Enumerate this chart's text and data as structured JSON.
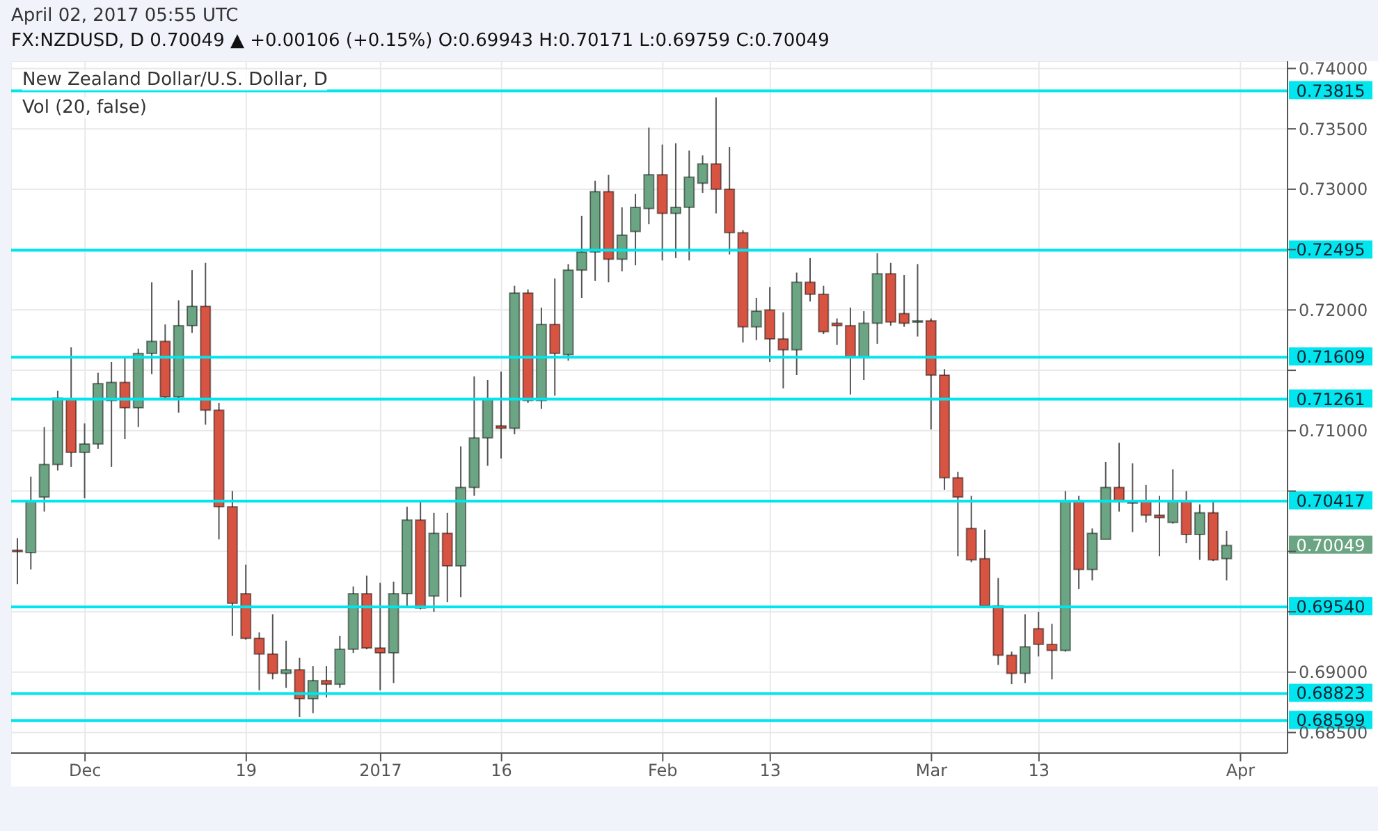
{
  "chart_data": {
    "type": "candlestick",
    "title": "New Zealand Dollar/U.S. Dollar, D",
    "subtitle": "April 02, 2017 05:55 UTC",
    "annotations": [
      "FX:NZDUSD, D 0.70049 ▲ +0.00106 (+0.15%) O:0.69943 H:0.70171 L:0.69759 C:0.70049",
      "Vol (20, false)",
      "0.70049"
    ],
    "categories": [
      null,
      null,
      null,
      null,
      null,
      "Dec",
      null,
      null,
      null,
      null,
      null,
      null,
      null,
      null,
      null,
      null,
      null,
      "19",
      null,
      null,
      null,
      null,
      null,
      null,
      null,
      null,
      null,
      "2017",
      null,
      null,
      null,
      null,
      null,
      null,
      null,
      null,
      "16",
      null,
      null,
      null,
      null,
      null,
      null,
      null,
      null,
      null,
      null,
      null,
      "Feb",
      null,
      null,
      null,
      null,
      null,
      null,
      null,
      "13",
      null,
      null,
      null,
      null,
      null,
      null,
      null,
      null,
      null,
      null,
      null,
      "Mar",
      null,
      null,
      null,
      null,
      null,
      null,
      null,
      "13",
      null,
      null,
      null,
      null,
      null,
      null,
      null,
      null,
      null,
      null,
      null,
      null,
      null,
      null,
      "Apr"
    ],
    "ohlc": [
      [
        0.7001,
        0.7011,
        0.6973,
        0.7
      ],
      [
        0.6999,
        0.7062,
        0.6985,
        0.7042
      ],
      [
        0.7045,
        0.7103,
        0.7033,
        0.7072
      ],
      [
        0.7072,
        0.7133,
        0.7067,
        0.7127
      ],
      [
        0.7126,
        0.7169,
        0.707,
        0.7082
      ],
      [
        0.7082,
        0.7106,
        0.7044,
        0.7089
      ],
      [
        0.7089,
        0.7148,
        0.7085,
        0.7139
      ],
      [
        0.7125,
        0.7157,
        0.707,
        0.714
      ],
      [
        0.714,
        0.716,
        0.7093,
        0.7119
      ],
      [
        0.7119,
        0.7168,
        0.7103,
        0.7164
      ],
      [
        0.7164,
        0.7223,
        0.7147,
        0.7174
      ],
      [
        0.7174,
        0.7188,
        0.7126,
        0.7128
      ],
      [
        0.7128,
        0.7208,
        0.7115,
        0.7187
      ],
      [
        0.7187,
        0.7233,
        0.7181,
        0.7203
      ],
      [
        0.7203,
        0.7239,
        0.7105,
        0.7117
      ],
      [
        0.7117,
        0.7123,
        0.701,
        0.7037
      ],
      [
        0.7037,
        0.705,
        0.693,
        0.6957
      ],
      [
        0.6965,
        0.6989,
        0.6927,
        0.6928
      ],
      [
        0.6928,
        0.6933,
        0.6885,
        0.6915
      ],
      [
        0.6915,
        0.6948,
        0.6894,
        0.6899
      ],
      [
        0.6899,
        0.6926,
        0.6887,
        0.6902
      ],
      [
        0.6902,
        0.6912,
        0.6863,
        0.6878
      ],
      [
        0.6878,
        0.6905,
        0.6866,
        0.6893
      ],
      [
        0.6893,
        0.6905,
        0.6879,
        0.689
      ],
      [
        0.689,
        0.693,
        0.6887,
        0.6919
      ],
      [
        0.6919,
        0.6971,
        0.6916,
        0.6965
      ],
      [
        0.6965,
        0.698,
        0.6919,
        0.692
      ],
      [
        0.692,
        0.6974,
        0.6885,
        0.6916
      ],
      [
        0.6916,
        0.6975,
        0.6891,
        0.6965
      ],
      [
        0.6965,
        0.7037,
        0.6955,
        0.7026
      ],
      [
        0.7026,
        0.7042,
        0.6952,
        0.6953
      ],
      [
        0.6963,
        0.7032,
        0.695,
        0.7015
      ],
      [
        0.7015,
        0.7032,
        0.6958,
        0.6988
      ],
      [
        0.6988,
        0.7087,
        0.6962,
        0.7053
      ],
      [
        0.7053,
        0.7145,
        0.7046,
        0.7094
      ],
      [
        0.7094,
        0.7142,
        0.7071,
        0.7126
      ],
      [
        0.7104,
        0.7149,
        0.7077,
        0.7102
      ],
      [
        0.7102,
        0.722,
        0.7097,
        0.7214
      ],
      [
        0.7214,
        0.7217,
        0.7123,
        0.7125
      ],
      [
        0.7125,
        0.7202,
        0.7118,
        0.7188
      ],
      [
        0.7188,
        0.7226,
        0.7129,
        0.7164
      ],
      [
        0.7163,
        0.7238,
        0.7158,
        0.7233
      ],
      [
        0.7233,
        0.7278,
        0.721,
        0.7248
      ],
      [
        0.7248,
        0.7307,
        0.7224,
        0.7298
      ],
      [
        0.7298,
        0.7312,
        0.7223,
        0.7242
      ],
      [
        0.7242,
        0.7285,
        0.7232,
        0.7262
      ],
      [
        0.7265,
        0.7296,
        0.7237,
        0.7285
      ],
      [
        0.7284,
        0.7351,
        0.7271,
        0.7312
      ],
      [
        0.7312,
        0.7337,
        0.7241,
        0.728
      ],
      [
        0.728,
        0.7338,
        0.7243,
        0.7285
      ],
      [
        0.7285,
        0.7332,
        0.7241,
        0.731
      ],
      [
        0.7305,
        0.7328,
        0.7297,
        0.7321
      ],
      [
        0.7321,
        0.7376,
        0.728,
        0.73
      ],
      [
        0.73,
        0.7335,
        0.7246,
        0.7264
      ],
      [
        0.7264,
        0.7266,
        0.7173,
        0.7186
      ],
      [
        0.7186,
        0.721,
        0.7175,
        0.7199
      ],
      [
        0.72,
        0.7219,
        0.7157,
        0.7176
      ],
      [
        0.7176,
        0.7198,
        0.7135,
        0.7167
      ],
      [
        0.7167,
        0.7231,
        0.7146,
        0.7223
      ],
      [
        0.7223,
        0.7243,
        0.7207,
        0.7213
      ],
      [
        0.7213,
        0.722,
        0.718,
        0.7182
      ],
      [
        0.7189,
        0.7193,
        0.7171,
        0.7187
      ],
      [
        0.7187,
        0.7202,
        0.713,
        0.7161
      ],
      [
        0.7161,
        0.7199,
        0.7142,
        0.7189
      ],
      [
        0.7189,
        0.7247,
        0.7172,
        0.723
      ],
      [
        0.723,
        0.7239,
        0.7187,
        0.719
      ],
      [
        0.7197,
        0.7229,
        0.7186,
        0.7189
      ],
      [
        0.719,
        0.7238,
        0.7178,
        0.7191
      ],
      [
        0.7191,
        0.7193,
        0.7101,
        0.7146
      ],
      [
        0.7146,
        0.7151,
        0.7051,
        0.7061
      ],
      [
        0.7061,
        0.7066,
        0.6996,
        0.7045
      ],
      [
        0.7019,
        0.7046,
        0.6991,
        0.6993
      ],
      [
        0.6994,
        0.7018,
        0.6953,
        0.6955
      ],
      [
        0.6955,
        0.6978,
        0.6906,
        0.6914
      ],
      [
        0.6914,
        0.6917,
        0.689,
        0.6899
      ],
      [
        0.6899,
        0.6948,
        0.6891,
        0.6921
      ],
      [
        0.6936,
        0.695,
        0.6913,
        0.6923
      ],
      [
        0.6923,
        0.694,
        0.6894,
        0.6918
      ],
      [
        0.6918,
        0.705,
        0.6917,
        0.7042
      ],
      [
        0.7042,
        0.7046,
        0.6969,
        0.6985
      ],
      [
        0.6985,
        0.7019,
        0.6976,
        0.7015
      ],
      [
        0.701,
        0.7074,
        0.701,
        0.7053
      ],
      [
        0.7053,
        0.709,
        0.7033,
        0.7041
      ],
      [
        0.7042,
        0.7073,
        0.7016,
        0.704
      ],
      [
        0.7042,
        0.7055,
        0.7024,
        0.703
      ],
      [
        0.703,
        0.7046,
        0.6996,
        0.7028
      ],
      [
        0.7024,
        0.7068,
        0.7023,
        0.7042
      ],
      [
        0.7042,
        0.705,
        0.7007,
        0.7014
      ],
      [
        0.7014,
        0.7039,
        0.6993,
        0.7032
      ],
      [
        0.7032,
        0.7042,
        0.6992,
        0.6993
      ],
      [
        0.6994,
        0.7017,
        0.6976,
        0.7005
      ],
      null
    ],
    "colors": [
      "#d75442",
      "#6ba583",
      "#6ba583",
      "#6ba583",
      "#d75442",
      "#6ba583",
      "#6ba583",
      "#6ba583",
      "#d75442",
      "#6ba583",
      "#6ba583",
      "#d75442",
      "#6ba583",
      "#6ba583",
      "#d75442",
      "#d75442",
      "#d75442",
      "#d75442",
      "#d75442",
      "#d75442",
      "#6ba583",
      "#d75442",
      "#6ba583",
      "#d75442",
      "#6ba583",
      "#6ba583",
      "#d75442",
      "#d75442",
      "#6ba583",
      "#6ba583",
      "#d75442",
      "#6ba583",
      "#d75442",
      "#6ba583",
      "#6ba583",
      "#6ba583",
      "#d75442",
      "#6ba583",
      "#d75442",
      "#6ba583",
      "#d75442",
      "#6ba583",
      "#6ba583",
      "#6ba583",
      "#d75442",
      "#6ba583",
      "#6ba583",
      "#6ba583",
      "#d75442",
      "#6ba583",
      "#6ba583",
      "#6ba583",
      "#d75442",
      "#d75442",
      "#d75442",
      "#6ba583",
      "#d75442",
      "#d75442",
      "#6ba583",
      "#d75442",
      "#d75442",
      "#d75442",
      "#d75442",
      "#6ba583",
      "#6ba583",
      "#d75442",
      "#d75442",
      "#6ba583",
      "#d75442",
      "#d75442",
      "#d75442",
      "#d75442",
      "#d75442",
      "#d75442",
      "#d75442",
      "#6ba583",
      "#d75442",
      "#d75442",
      "#6ba583",
      "#d75442",
      "#6ba583",
      "#6ba583",
      "#d75442",
      "#d75442",
      "#d75442",
      "#d75442",
      "#6ba583",
      "#d75442",
      "#6ba583",
      "#d75442",
      "#6ba583",
      null
    ],
    "ylim": [
      0.6833,
      0.7406
    ],
    "yticks": [
      {
        "value": 0.685,
        "label": "0.68500"
      },
      {
        "value": 0.69,
        "label": "0.69000"
      },
      {
        "value": 0.695,
        "label": null
      },
      {
        "value": 0.7,
        "label": null
      },
      {
        "value": 0.705,
        "label": null
      },
      {
        "value": 0.71,
        "label": "0.71000"
      },
      {
        "value": 0.715,
        "label": null
      },
      {
        "value": 0.72,
        "label": "0.72000"
      },
      {
        "value": 0.725,
        "label": null
      },
      {
        "value": 0.73,
        "label": "0.73000"
      },
      {
        "value": 0.735,
        "label": "0.73500"
      },
      {
        "value": 0.74,
        "label": "0.74000"
      }
    ],
    "ref_lines": [
      {
        "axis": "y",
        "value": 0.73815,
        "label": "0.73815",
        "color": "#00e5ee"
      },
      {
        "axis": "y",
        "value": 0.72495,
        "label": "0.72495",
        "color": "#00e5ee"
      },
      {
        "axis": "y",
        "value": 0.71609,
        "label": "0.71609",
        "color": "#00e5ee"
      },
      {
        "axis": "y",
        "value": 0.71261,
        "label": "0.71261",
        "color": "#00e5ee"
      },
      {
        "axis": "y",
        "value": 0.70417,
        "label": "0.70417",
        "color": "#00e5ee"
      },
      {
        "axis": "y",
        "value": 0.6954,
        "label": "0.69540",
        "color": "#00e5ee"
      },
      {
        "axis": "y",
        "value": 0.68823,
        "label": "0.68823",
        "color": "#00e5ee"
      },
      {
        "axis": "y",
        "value": 0.68599,
        "label": "0.68599",
        "color": "#00e5ee"
      }
    ],
    "grid": true
  }
}
